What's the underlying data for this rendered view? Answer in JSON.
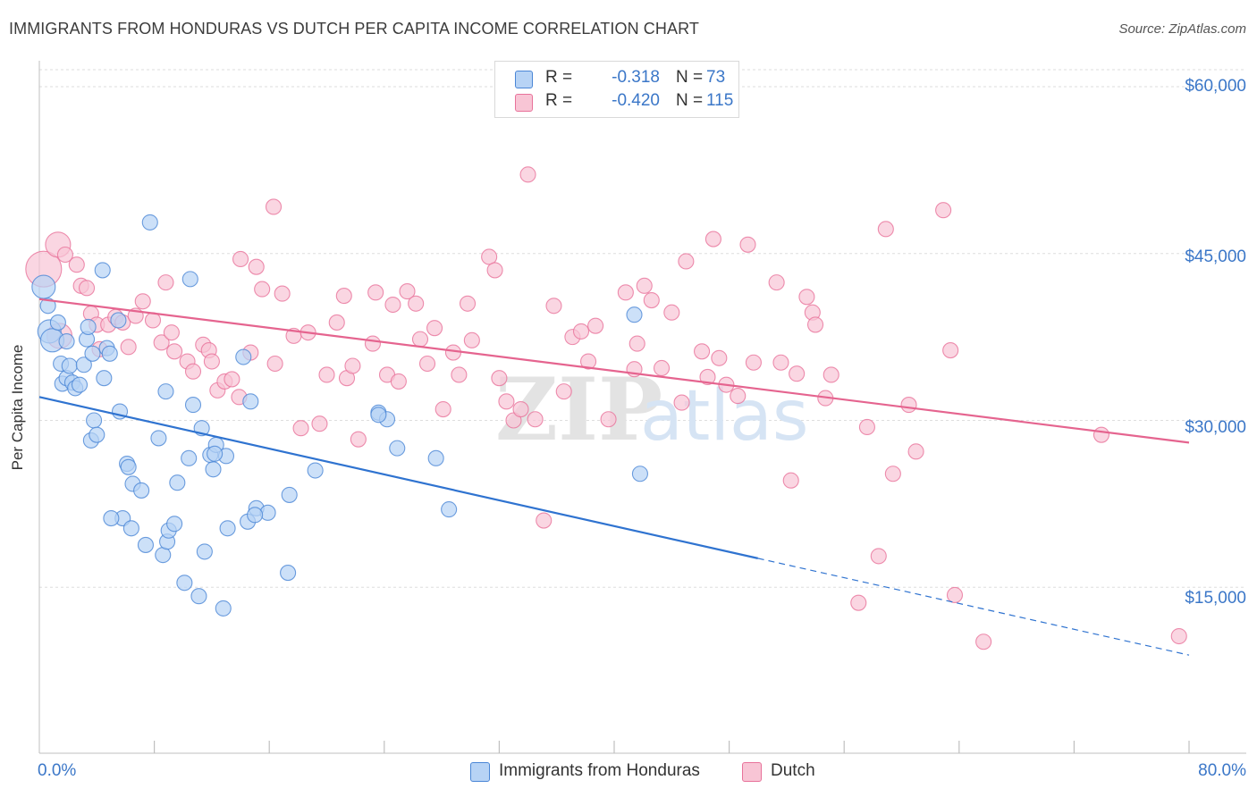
{
  "header": {
    "title": "IMMIGRANTS FROM HONDURAS VS DUTCH PER CAPITA INCOME CORRELATION CHART",
    "source": "Source: ZipAtlas.com"
  },
  "colors": {
    "blue": "#4a86d6",
    "blue_fill": "#b7d3f5",
    "pink": "#e8729a",
    "pink_fill": "#f8c5d5",
    "axis_text": "#3b77c8",
    "grid": "#dedede"
  },
  "legend": {
    "rows": [
      {
        "r_label": "R =",
        "r_value": "-0.318",
        "n_label": "N =",
        "n_value": "73"
      },
      {
        "r_label": "R =",
        "r_value": "-0.420",
        "n_label": "N =",
        "n_value": "115"
      }
    ]
  },
  "watermark": {
    "zip": "ZIP",
    "atlas": "atlas"
  },
  "axis": {
    "ylabel": "Per Capita Income",
    "y_ticks": [
      "$60,000",
      "$45,000",
      "$30,000",
      "$15,000"
    ],
    "x_left": "0.0%",
    "x_right": "80.0%"
  },
  "chart_data": {
    "type": "scatter",
    "title": "IMMIGRANTS FROM HONDURAS VS DUTCH PER CAPITA INCOME CORRELATION CHART",
    "xlabel": "",
    "ylabel": "Per Capita Income",
    "xlim": [
      0,
      80
    ],
    "ylim": [
      0,
      62000
    ],
    "y_ticks": [
      15000,
      30000,
      45000,
      60000
    ],
    "grid": true,
    "legend_position": "top-center",
    "series": [
      {
        "name": "Immigrants from Honduras",
        "color": "#4a86d6",
        "r": -0.318,
        "n": 73,
        "trend": {
          "x0": 0,
          "y0": 32100,
          "x1": 50,
          "y1": 17600,
          "x_dash_end": 80,
          "y_dash_end": 8900
        },
        "points": [
          [
            0.3,
            42000
          ],
          [
            0.6,
            40300
          ],
          [
            0.7,
            38000
          ],
          [
            0.9,
            37200
          ],
          [
            1.3,
            38800
          ],
          [
            1.5,
            35100
          ],
          [
            1.6,
            33300
          ],
          [
            1.9,
            33800
          ],
          [
            1.9,
            37100
          ],
          [
            2.1,
            34900
          ],
          [
            2.3,
            33400
          ],
          [
            2.5,
            32900
          ],
          [
            2.8,
            33200
          ],
          [
            3.1,
            35000
          ],
          [
            3.3,
            37300
          ],
          [
            3.4,
            38400
          ],
          [
            3.6,
            28200
          ],
          [
            3.7,
            36000
          ],
          [
            3.8,
            30000
          ],
          [
            4.0,
            28700
          ],
          [
            4.4,
            43500
          ],
          [
            4.5,
            33800
          ],
          [
            4.7,
            36500
          ],
          [
            4.9,
            36000
          ],
          [
            5.5,
            39000
          ],
          [
            5.6,
            30800
          ],
          [
            5.8,
            21200
          ],
          [
            6.1,
            26100
          ],
          [
            6.2,
            25800
          ],
          [
            6.4,
            20300
          ],
          [
            6.5,
            24300
          ],
          [
            7.1,
            23700
          ],
          [
            7.4,
            18800
          ],
          [
            7.7,
            47800
          ],
          [
            8.3,
            28400
          ],
          [
            8.6,
            17900
          ],
          [
            8.8,
            32600
          ],
          [
            8.9,
            19100
          ],
          [
            9.0,
            20100
          ],
          [
            9.4,
            20700
          ],
          [
            9.6,
            24400
          ],
          [
            10.1,
            15400
          ],
          [
            10.4,
            26600
          ],
          [
            10.5,
            42700
          ],
          [
            10.7,
            31400
          ],
          [
            11.1,
            14200
          ],
          [
            11.3,
            29300
          ],
          [
            11.5,
            18200
          ],
          [
            11.9,
            26900
          ],
          [
            12.1,
            25600
          ],
          [
            12.3,
            27800
          ],
          [
            12.8,
            13100
          ],
          [
            13.0,
            26800
          ],
          [
            13.1,
            20300
          ],
          [
            14.2,
            35700
          ],
          [
            14.5,
            20900
          ],
          [
            14.7,
            31700
          ],
          [
            15.1,
            22100
          ],
          [
            15.9,
            21700
          ],
          [
            17.3,
            16300
          ],
          [
            17.4,
            23300
          ],
          [
            19.2,
            25500
          ],
          [
            23.6,
            30700
          ],
          [
            24.2,
            30100
          ],
          [
            24.9,
            27500
          ],
          [
            27.6,
            26600
          ],
          [
            28.5,
            22000
          ],
          [
            41.4,
            39500
          ],
          [
            41.8,
            25200
          ],
          [
            23.6,
            30500
          ],
          [
            12.2,
            27000
          ],
          [
            5.0,
            21200
          ],
          [
            15.0,
            21500
          ]
        ]
      },
      {
        "name": "Dutch",
        "color": "#e8729a",
        "r": -0.42,
        "n": 115,
        "trend": {
          "x0": 0,
          "y0": 40900,
          "x1": 80,
          "y1": 28000
        },
        "points": [
          [
            0.3,
            43600
          ],
          [
            1.3,
            45800
          ],
          [
            1.4,
            37600
          ],
          [
            1.8,
            44900
          ],
          [
            2.6,
            44000
          ],
          [
            2.9,
            42100
          ],
          [
            3.3,
            41900
          ],
          [
            3.6,
            39600
          ],
          [
            4.0,
            38600
          ],
          [
            4.2,
            36400
          ],
          [
            4.8,
            38600
          ],
          [
            5.3,
            39300
          ],
          [
            5.8,
            38800
          ],
          [
            6.2,
            36600
          ],
          [
            6.7,
            39400
          ],
          [
            7.2,
            40700
          ],
          [
            7.9,
            39000
          ],
          [
            8.5,
            37000
          ],
          [
            8.8,
            42400
          ],
          [
            9.2,
            37900
          ],
          [
            9.4,
            36200
          ],
          [
            10.3,
            35300
          ],
          [
            10.7,
            34400
          ],
          [
            11.4,
            36800
          ],
          [
            11.8,
            36300
          ],
          [
            12.0,
            35300
          ],
          [
            12.4,
            32700
          ],
          [
            12.9,
            33500
          ],
          [
            13.4,
            33700
          ],
          [
            13.9,
            32100
          ],
          [
            14.0,
            44500
          ],
          [
            14.7,
            36100
          ],
          [
            15.1,
            43800
          ],
          [
            15.5,
            41800
          ],
          [
            16.3,
            49200
          ],
          [
            16.4,
            35100
          ],
          [
            16.9,
            41400
          ],
          [
            17.7,
            37600
          ],
          [
            18.2,
            29300
          ],
          [
            18.7,
            37900
          ],
          [
            19.5,
            29700
          ],
          [
            20.0,
            34100
          ],
          [
            20.7,
            38800
          ],
          [
            21.2,
            41200
          ],
          [
            21.4,
            33800
          ],
          [
            21.8,
            34900
          ],
          [
            22.2,
            28300
          ],
          [
            23.2,
            36900
          ],
          [
            23.4,
            41500
          ],
          [
            24.2,
            34100
          ],
          [
            24.6,
            40400
          ],
          [
            25.0,
            33500
          ],
          [
            25.6,
            41600
          ],
          [
            26.2,
            40500
          ],
          [
            26.5,
            37300
          ],
          [
            27.0,
            35100
          ],
          [
            27.5,
            38300
          ],
          [
            28.1,
            31000
          ],
          [
            28.8,
            36100
          ],
          [
            29.2,
            34100
          ],
          [
            29.8,
            40500
          ],
          [
            30.1,
            37200
          ],
          [
            31.3,
            44700
          ],
          [
            31.7,
            43500
          ],
          [
            32.0,
            33800
          ],
          [
            32.5,
            31700
          ],
          [
            33.0,
            30000
          ],
          [
            33.5,
            31000
          ],
          [
            34.0,
            52100
          ],
          [
            34.5,
            30100
          ],
          [
            35.1,
            21000
          ],
          [
            35.8,
            40300
          ],
          [
            36.5,
            32600
          ],
          [
            37.1,
            37500
          ],
          [
            37.7,
            38000
          ],
          [
            38.2,
            35300
          ],
          [
            38.7,
            38500
          ],
          [
            39.6,
            30100
          ],
          [
            40.8,
            41500
          ],
          [
            41.4,
            34600
          ],
          [
            41.6,
            36900
          ],
          [
            42.1,
            42100
          ],
          [
            42.6,
            40800
          ],
          [
            43.3,
            34700
          ],
          [
            44.0,
            39700
          ],
          [
            44.7,
            31600
          ],
          [
            45.0,
            44300
          ],
          [
            46.1,
            36200
          ],
          [
            46.5,
            33900
          ],
          [
            46.9,
            46300
          ],
          [
            47.3,
            35600
          ],
          [
            47.8,
            33200
          ],
          [
            48.6,
            32200
          ],
          [
            49.3,
            45800
          ],
          [
            49.7,
            35200
          ],
          [
            51.3,
            42400
          ],
          [
            51.6,
            35200
          ],
          [
            52.3,
            24600
          ],
          [
            52.7,
            34200
          ],
          [
            53.4,
            41100
          ],
          [
            53.8,
            39700
          ],
          [
            54.0,
            38600
          ],
          [
            54.7,
            32000
          ],
          [
            55.1,
            34100
          ],
          [
            57.0,
            13600
          ],
          [
            57.6,
            29400
          ],
          [
            58.4,
            17800
          ],
          [
            58.9,
            47200
          ],
          [
            59.4,
            25200
          ],
          [
            60.5,
            31400
          ],
          [
            61.0,
            27200
          ],
          [
            62.9,
            48900
          ],
          [
            63.4,
            36300
          ],
          [
            63.7,
            14300
          ],
          [
            65.7,
            10100
          ],
          [
            73.9,
            28700
          ],
          [
            79.3,
            10600
          ]
        ]
      }
    ]
  },
  "bottom_legend": {
    "items": [
      "Immigrants from Honduras",
      "Dutch"
    ]
  }
}
